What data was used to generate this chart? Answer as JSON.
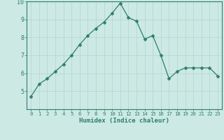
{
  "x": [
    0,
    1,
    2,
    3,
    4,
    5,
    6,
    7,
    8,
    9,
    10,
    11,
    12,
    13,
    14,
    15,
    16,
    17,
    18,
    19,
    20,
    21,
    22,
    23
  ],
  "y": [
    4.7,
    5.4,
    5.7,
    6.1,
    6.5,
    7.0,
    7.6,
    8.1,
    8.5,
    8.85,
    9.35,
    9.9,
    9.1,
    8.9,
    7.9,
    8.1,
    7.0,
    5.7,
    6.1,
    6.3,
    6.3,
    6.3,
    6.3,
    5.85
  ],
  "line_color": "#2e7d6e",
  "marker": "D",
  "marker_size": 2.5,
  "bg_color": "#cce9e4",
  "grid_color": "#b8d8d3",
  "axis_color": "#2e7d6e",
  "tick_color": "#2e7d6e",
  "xlabel": "Humidex (Indice chaleur)",
  "ylim": [
    4,
    10
  ],
  "xlim": [
    -0.5,
    23.5
  ],
  "yticks": [
    5,
    6,
    7,
    8,
    9,
    10
  ],
  "xticks": [
    0,
    1,
    2,
    3,
    4,
    5,
    6,
    7,
    8,
    9,
    10,
    11,
    12,
    13,
    14,
    15,
    16,
    17,
    18,
    19,
    20,
    21,
    22,
    23
  ],
  "xlabel_fontsize": 6.5,
  "ytick_fontsize": 6.0,
  "xtick_fontsize": 5.2
}
